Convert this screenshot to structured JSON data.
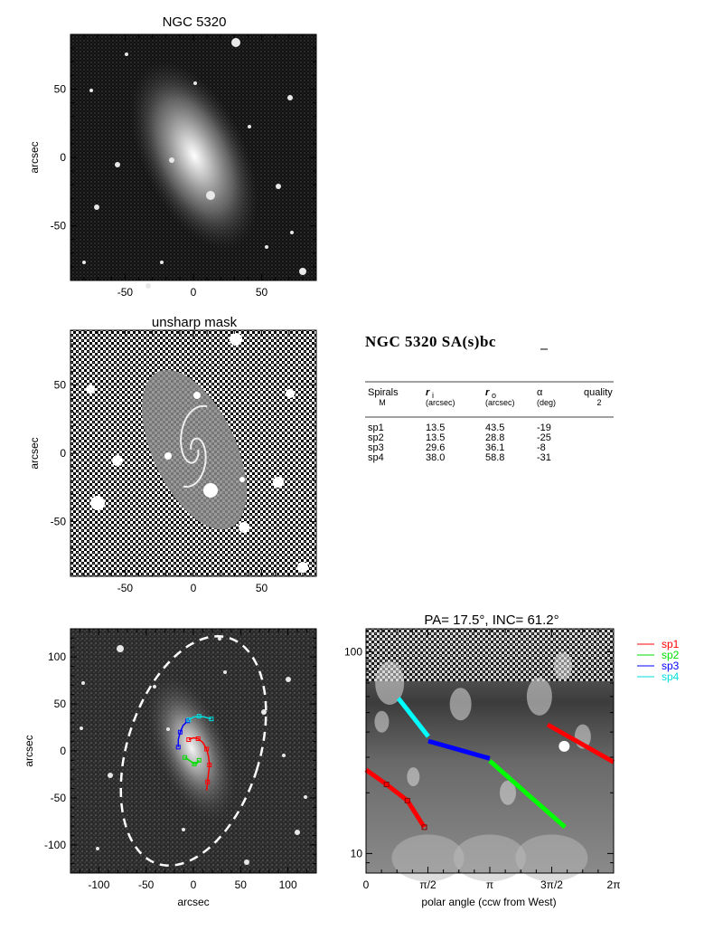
{
  "chart_data": [
    {
      "type": "image",
      "title": "NGC 5320",
      "ylabel": "arcsec",
      "xlim": [
        -90,
        90
      ],
      "ylim": [
        -90,
        90
      ],
      "xticks": [
        -50,
        0,
        50
      ],
      "yticks": [
        -50,
        0,
        50
      ],
      "galaxy": {
        "pa_deg": 17.5,
        "inc_deg": 61.2
      }
    },
    {
      "type": "image",
      "title": "unsharp mask",
      "ylabel": "arcsec",
      "xlim": [
        -90,
        90
      ],
      "ylim": [
        -90,
        90
      ],
      "xticks": [
        -50,
        0,
        50
      ],
      "yticks": [
        -50,
        0,
        50
      ]
    },
    {
      "type": "image",
      "xlabel": "arcsec",
      "ylabel": "arcsec",
      "xlim": [
        -130,
        130
      ],
      "ylim": [
        -130,
        130
      ],
      "xticks": [
        -100,
        -50,
        0,
        50,
        100
      ],
      "yticks": [
        -100,
        -50,
        0,
        50,
        100
      ],
      "ellipse": {
        "semi_major": 126,
        "semi_minor": 70,
        "pa_deg": 17.5
      },
      "arms": [
        {
          "name": "sp1",
          "color": "#ff0000",
          "path": [
            [
              -5,
              12
            ],
            [
              0,
              14
            ],
            [
              5,
              13
            ],
            [
              10,
              9
            ],
            [
              14,
              2
            ],
            [
              16,
              -6
            ],
            [
              17,
              -15
            ],
            [
              16,
              -24
            ],
            [
              15,
              -33
            ],
            [
              14,
              -42
            ]
          ]
        },
        {
          "name": "sp2",
          "color": "#00dd00",
          "path": [
            [
              -9,
              -7
            ],
            [
              -3,
              -11
            ],
            [
              1,
              -14
            ],
            [
              4,
              -13
            ],
            [
              6,
              -10
            ]
          ]
        },
        {
          "name": "sp3",
          "color": "#0000ff",
          "path": [
            [
              -16,
              4
            ],
            [
              -16,
              12
            ],
            [
              -14,
              20
            ],
            [
              -11,
              27
            ],
            [
              -6,
              32
            ]
          ]
        },
        {
          "name": "sp4",
          "color": "#00dddd",
          "path": [
            [
              -5,
              33
            ],
            [
              0,
              36
            ],
            [
              6,
              37
            ],
            [
              12,
              36
            ],
            [
              19,
              34
            ]
          ]
        }
      ]
    },
    {
      "type": "line",
      "title": "PA=  17.5°, INC=  61.2°",
      "xlabel": "polar angle (ccw from West)",
      "ylabel": "",
      "xlim": [
        0,
        6.2832
      ],
      "ylim": [
        8,
        130
      ],
      "yscale": "log",
      "xtick_labels": [
        "0",
        "π/2",
        "π",
        "3π/2",
        "2π"
      ],
      "ytick_labels": [
        "10",
        "100"
      ],
      "series": [
        {
          "name": "sp1",
          "color": "#ff0000",
          "x": [
            0.0,
            0.52,
            1.05,
            1.48,
            1.99,
            2.62
          ],
          "y": [
            26.0,
            22.0,
            18.3,
            13.5,
            43.5,
            28.4
          ]
        },
        {
          "name": "sp2",
          "color": "#00ff00",
          "x": [
            3.14,
            5.05
          ],
          "y": [
            28.8,
            13.5
          ]
        },
        {
          "name": "sp3",
          "color": "#0000ff",
          "x": [
            1.58,
            3.14
          ],
          "y": [
            36.1,
            29.6
          ]
        },
        {
          "name": "sp4",
          "color": "#00ffff",
          "x": [
            0.82,
            1.58
          ],
          "y": [
            58.8,
            38.0
          ]
        }
      ]
    }
  ],
  "summary": {
    "heading": "NGC 5320  SA(s)bc",
    "columns": [
      {
        "label": "Spirals",
        "sub": "M"
      },
      {
        "label": "r",
        "sub": "(arcsec)",
        "subscript": "i"
      },
      {
        "label": "r",
        "sub": "(arcsec)",
        "subscript": "o"
      },
      {
        "label": "α",
        "sub": "(deg)"
      },
      {
        "label": "quality",
        "sub": "2"
      }
    ],
    "rows": [
      [
        "sp1",
        "13.5",
        "43.5",
        "-19"
      ],
      [
        "sp2",
        "13.5",
        "28.8",
        "-25"
      ],
      [
        "sp3",
        "29.6",
        "36.1",
        "-8"
      ],
      [
        "sp4",
        "38.0",
        "58.8",
        "-31"
      ]
    ]
  },
  "legend": [
    {
      "name": "sp1",
      "color": "#ff0000"
    },
    {
      "name": "sp2",
      "color": "#00dd00"
    },
    {
      "name": "sp3",
      "color": "#0000ff"
    },
    {
      "name": "sp4",
      "color": "#00dddd"
    }
  ]
}
